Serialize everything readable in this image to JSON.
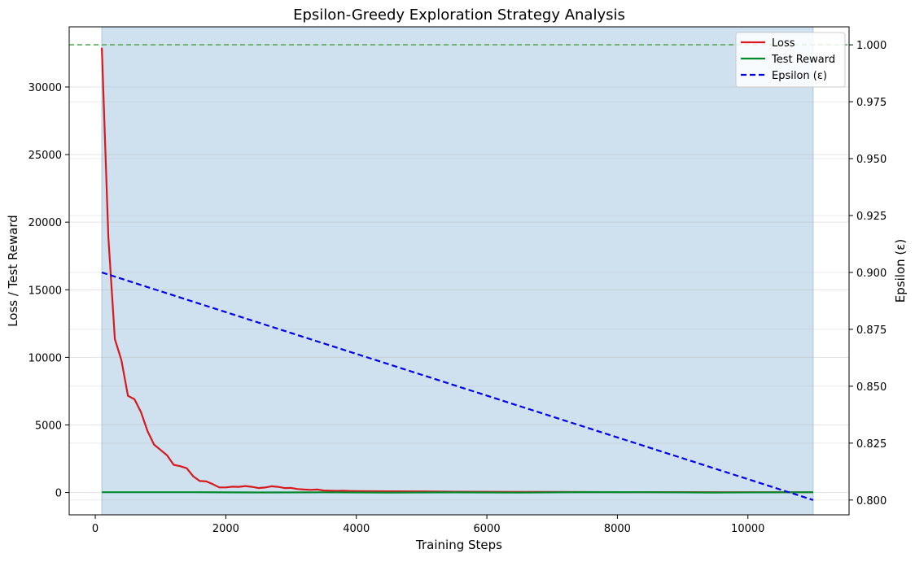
{
  "chart_data": {
    "type": "line",
    "title": "Epsilon-Greedy Exploration Strategy Analysis",
    "xlabel": "Training Steps",
    "ylabel_left": "Loss / Test Reward",
    "ylabel_right": "Epsilon (ε)",
    "xlim": [
      -400,
      11550
    ],
    "ylim_left": [
      -1650,
      34450
    ],
    "ylim_right": [
      0.7935,
      1.0079
    ],
    "xticks": [
      0,
      2000,
      4000,
      6000,
      8000,
      10000
    ],
    "xtick_labels": [
      "0",
      "2000",
      "4000",
      "6000",
      "8000",
      "10000"
    ],
    "yticks_left": [
      0,
      5000,
      10000,
      15000,
      20000,
      25000,
      30000
    ],
    "ytick_labels_left": [
      "0",
      "5000",
      "10000",
      "15000",
      "20000",
      "25000",
      "30000"
    ],
    "yticks_right": [
      0.8,
      0.825,
      0.85,
      0.875,
      0.9,
      0.925,
      0.95,
      0.975,
      1.0
    ],
    "ytick_labels_right": [
      "0.800",
      "0.825",
      "0.850",
      "0.875",
      "0.900",
      "0.925",
      "0.950",
      "0.975",
      "1.000"
    ],
    "shaded_region": {
      "x": [
        100,
        11000
      ],
      "color": "#cfe1ee"
    },
    "reference_line": {
      "axis": "right",
      "y": 1.0,
      "color": "#5aaa5a",
      "style": "dashed"
    },
    "grid": true,
    "legend_position": "top-right",
    "series": [
      {
        "name": "Loss",
        "axis": "left",
        "color": "#d7191c",
        "style": "solid",
        "x": [
          100,
          200,
          300,
          400,
          500,
          600,
          700,
          800,
          900,
          1000,
          1100,
          1200,
          1300,
          1400,
          1500,
          1600,
          1700,
          1800,
          1900,
          2000,
          2100,
          2200,
          2300,
          2400,
          2500,
          2600,
          2700,
          2800,
          2900,
          3000,
          3100,
          3200,
          3300,
          3400,
          3500,
          3600,
          3700,
          3800,
          3900,
          4000,
          4500,
          5000,
          5500,
          6000,
          7000,
          8000,
          9000,
          10000,
          11000
        ],
        "y": [
          32900,
          18900,
          11350,
          9800,
          7150,
          6900,
          5950,
          4550,
          3550,
          3150,
          2750,
          2050,
          1950,
          1800,
          1200,
          850,
          820,
          620,
          380,
          380,
          430,
          420,
          480,
          420,
          330,
          370,
          460,
          420,
          330,
          340,
          260,
          220,
          200,
          220,
          150,
          130,
          120,
          130,
          110,
          100,
          90,
          80,
          60,
          50,
          40,
          30,
          30,
          20,
          20
        ]
      },
      {
        "name": "Test Reward",
        "axis": "left",
        "color": "#008a2e",
        "style": "solid",
        "x": [
          100,
          1500,
          2500,
          3500,
          4500,
          5500,
          6500,
          7500,
          8500,
          9500,
          11000
        ],
        "y": [
          20,
          25,
          5,
          15,
          -10,
          10,
          -5,
          30,
          20,
          0,
          20
        ]
      },
      {
        "name": "Epsilon (ε)",
        "axis": "right",
        "color": "#0000ee",
        "style": "dashed",
        "x": [
          100,
          11000
        ],
        "y": [
          0.9,
          0.8
        ]
      }
    ]
  }
}
